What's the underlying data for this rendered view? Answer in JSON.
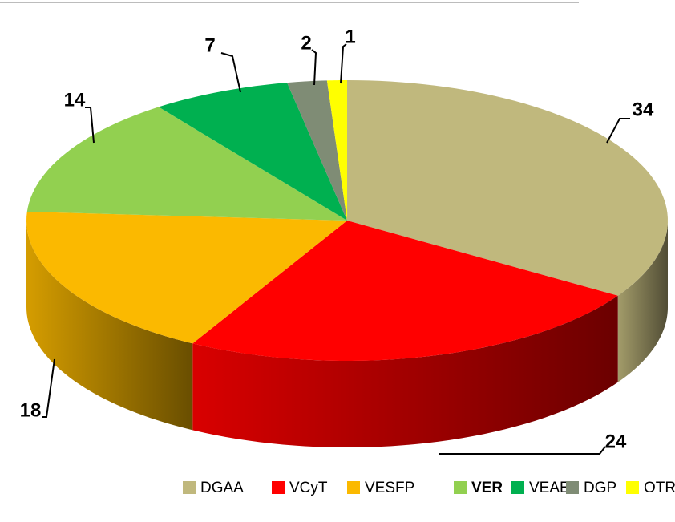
{
  "chart_data": {
    "type": "pie3d",
    "categories": [
      "DGAA",
      "VCyT",
      "VESFP",
      "VER",
      "VEAE",
      "DGP",
      "OTRAS"
    ],
    "values": [
      34,
      24,
      18,
      14,
      7,
      2,
      1
    ],
    "colors": [
      "#c0b87d",
      "#ff0000",
      "#fbb900",
      "#92d050",
      "#00b050",
      "#7f8c75",
      "#ffff00"
    ],
    "legend": "bottom"
  }
}
